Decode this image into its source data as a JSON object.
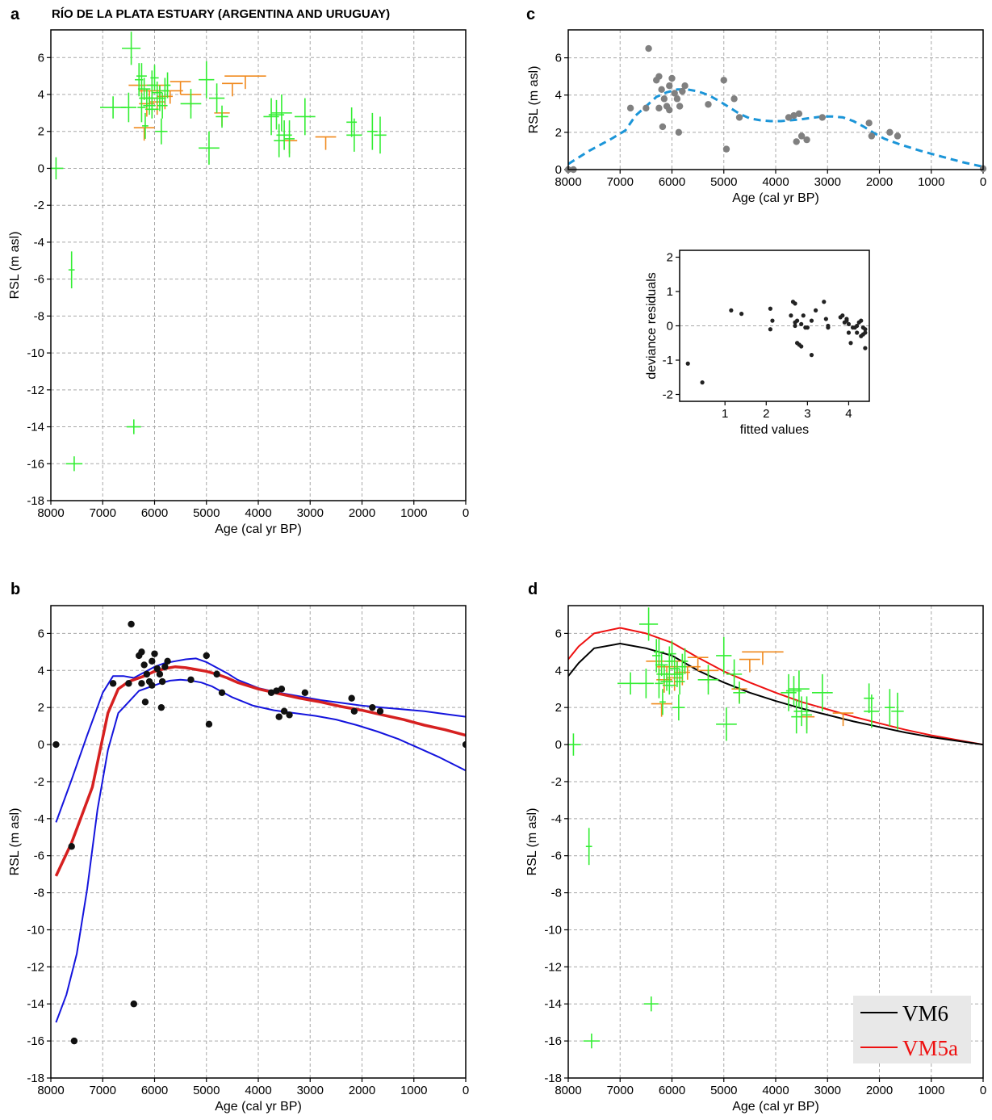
{
  "figure": {
    "title": "RÍO DE LA PLATA ESTUARY (ARGENTINA AND URUGUAY)",
    "panel_labels": [
      "a",
      "b",
      "c",
      "d"
    ]
  },
  "colors": {
    "green": "#33ee33",
    "orange": "#f08a1e",
    "red_fit": "#d62020",
    "blue_ci": "#1414dd",
    "dash_fit": "#1b95d8",
    "grey_point": "#808080",
    "black_point": "#111111",
    "vm6": "#000000",
    "vm5a": "#ee1111",
    "legend_bg": "#e8e8e8"
  },
  "chart_data": [
    {
      "id": "a",
      "type": "scatter",
      "title": "RÍO DE LA PLATA ESTUARY (ARGENTINA AND URUGUAY)",
      "xlabel": "Age (cal yr BP)",
      "ylabel": "RSL (m asl)",
      "xlim": [
        8000,
        0
      ],
      "ylim": [
        -18,
        7.5
      ],
      "xticks": [
        8000,
        7000,
        6000,
        5000,
        4000,
        3000,
        2000,
        1000,
        0
      ],
      "yticks": [
        -18,
        -16,
        -14,
        -12,
        -10,
        -8,
        -6,
        -4,
        -2,
        0,
        2,
        4,
        6
      ],
      "grid": true,
      "series": [
        {
          "kind": "sea-level index points (green crosses)",
          "points": "index_points"
        },
        {
          "kind": "marine limiting points (orange)",
          "points": "limiting_points"
        }
      ]
    },
    {
      "id": "b",
      "type": "scatter",
      "xlabel": "Age (cal yr BP)",
      "ylabel": "RSL (m asl)",
      "xlim": [
        8000,
        0
      ],
      "ylim": [
        -18,
        7.5
      ],
      "xticks": [
        8000,
        7000,
        6000,
        5000,
        4000,
        3000,
        2000,
        1000,
        0
      ],
      "yticks": [
        -18,
        -16,
        -14,
        -12,
        -10,
        -8,
        -6,
        -4,
        -2,
        0,
        2,
        4,
        6
      ],
      "grid": true,
      "series": [
        {
          "kind": "data points (black)",
          "points": "index_points"
        },
        {
          "kind": "fit (red)",
          "x": [
            7900,
            7600,
            7200,
            6900,
            6700,
            6500,
            6200,
            6000,
            5800,
            5600,
            5400,
            5200,
            5000,
            4800,
            4600,
            4400,
            4000,
            3600,
            3200,
            2800,
            2400,
            2000,
            1600,
            1200,
            800,
            400,
            0
          ],
          "y": [
            -7.1,
            -5.3,
            -2.3,
            1.7,
            3.0,
            3.4,
            3.7,
            3.95,
            4.1,
            4.2,
            4.15,
            4.05,
            3.95,
            3.8,
            3.6,
            3.35,
            3.0,
            2.75,
            2.5,
            2.3,
            2.05,
            1.85,
            1.6,
            1.35,
            1.05,
            0.8,
            0.5
          ]
        },
        {
          "kind": "upper confidence (blue)",
          "x": [
            7900,
            7600,
            7300,
            7000,
            6800,
            6600,
            6400,
            6200,
            6000,
            5800,
            5600,
            5400,
            5200,
            5000,
            4800,
            4600,
            4400,
            4000,
            3600,
            3200,
            2800,
            2400,
            2000,
            1600,
            1200,
            800,
            400,
            0
          ],
          "y": [
            -4.2,
            -1.9,
            0.5,
            2.8,
            3.7,
            3.7,
            3.6,
            3.9,
            4.2,
            4.4,
            4.5,
            4.6,
            4.65,
            4.45,
            4.15,
            3.85,
            3.5,
            3.05,
            2.8,
            2.6,
            2.4,
            2.25,
            2.1,
            2.0,
            1.9,
            1.8,
            1.65,
            1.5
          ]
        },
        {
          "kind": "lower confidence (blue)",
          "x": [
            7900,
            7700,
            7500,
            7300,
            7100,
            6900,
            6700,
            6500,
            6300,
            6100,
            5900,
            5700,
            5500,
            5300,
            5100,
            4900,
            4700,
            4500,
            4100,
            3700,
            3300,
            2900,
            2500,
            2100,
            1700,
            1300,
            900,
            500,
            0
          ],
          "y": [
            -15,
            -13.5,
            -11.3,
            -7.8,
            -3.5,
            -0.3,
            1.7,
            2.3,
            2.9,
            3.1,
            3.3,
            3.45,
            3.5,
            3.45,
            3.35,
            3.15,
            2.85,
            2.55,
            2.1,
            1.85,
            1.7,
            1.55,
            1.35,
            1.05,
            0.7,
            0.3,
            -0.2,
            -0.7,
            -1.4
          ]
        }
      ]
    },
    {
      "id": "c",
      "type": "scatter",
      "xlabel": "Age (cal yr BP)",
      "ylabel": "RSL (m asl)",
      "xlim": [
        8000,
        0
      ],
      "ylim": [
        0,
        7.5
      ],
      "xticks": [
        8000,
        7000,
        6000,
        5000,
        4000,
        3000,
        2000,
        1000,
        0
      ],
      "yticks": [
        0,
        2,
        4,
        6
      ],
      "grid": true,
      "series": [
        {
          "kind": "data points (grey)",
          "points": "index_points_positive"
        },
        {
          "kind": "fit (dashed blue)",
          "x": [
            8000,
            7600,
            7200,
            6900,
            6700,
            6500,
            6300,
            6100,
            5900,
            5700,
            5500,
            5300,
            5100,
            4900,
            4700,
            4500,
            4300,
            4100,
            3900,
            3700,
            3500,
            3300,
            3100,
            2900,
            2700,
            2500,
            2300,
            2100,
            1900,
            1600,
            1200,
            800,
            400,
            0
          ],
          "y": [
            0.3,
            1.0,
            1.6,
            2.1,
            2.9,
            3.4,
            3.9,
            4.15,
            4.3,
            4.3,
            4.2,
            4.0,
            3.7,
            3.35,
            3.0,
            2.75,
            2.65,
            2.6,
            2.6,
            2.65,
            2.7,
            2.78,
            2.85,
            2.85,
            2.8,
            2.6,
            2.3,
            1.95,
            1.65,
            1.35,
            1.0,
            0.7,
            0.4,
            0.15
          ]
        }
      ]
    },
    {
      "id": "c-inset",
      "type": "scatter",
      "xlabel": "fitted values",
      "ylabel": "deviance residuals",
      "xlim": [
        -0.1,
        4.5
      ],
      "ylim": [
        -2.2,
        2.2
      ],
      "xticks": [
        1,
        2,
        3,
        4
      ],
      "yticks": [
        -2,
        -1,
        0,
        1,
        2
      ],
      "zero_line": true,
      "points": [
        [
          0.1,
          -1.1
        ],
        [
          0.45,
          -1.65
        ],
        [
          1.15,
          0.45
        ],
        [
          1.4,
          0.35
        ],
        [
          2.1,
          0.5
        ],
        [
          2.1,
          -0.1
        ],
        [
          2.15,
          0.15
        ],
        [
          2.6,
          0.3
        ],
        [
          2.65,
          0.7
        ],
        [
          2.7,
          0.65
        ],
        [
          2.7,
          0.0
        ],
        [
          2.7,
          0.1
        ],
        [
          2.75,
          0.15
        ],
        [
          2.75,
          -0.5
        ],
        [
          2.8,
          -0.55
        ],
        [
          2.85,
          0.05
        ],
        [
          2.85,
          -0.6
        ],
        [
          2.9,
          0.3
        ],
        [
          2.95,
          -0.05
        ],
        [
          3.0,
          -0.05
        ],
        [
          3.1,
          0.15
        ],
        [
          3.1,
          -0.85
        ],
        [
          3.2,
          0.45
        ],
        [
          3.4,
          0.7
        ],
        [
          3.45,
          0.2
        ],
        [
          3.5,
          -0.05
        ],
        [
          3.5,
          0.0
        ],
        [
          3.8,
          0.25
        ],
        [
          3.85,
          0.3
        ],
        [
          3.9,
          0.1
        ],
        [
          3.95,
          0.15
        ],
        [
          3.95,
          0.2
        ],
        [
          4.0,
          0.05
        ],
        [
          4.0,
          -0.2
        ],
        [
          4.05,
          -0.5
        ],
        [
          4.1,
          -0.05
        ],
        [
          4.15,
          -0.05
        ],
        [
          4.2,
          0.0
        ],
        [
          4.2,
          -0.2
        ],
        [
          4.25,
          0.1
        ],
        [
          4.3,
          0.15
        ],
        [
          4.3,
          -0.3
        ],
        [
          4.35,
          -0.05
        ],
        [
          4.35,
          -0.25
        ],
        [
          4.4,
          -0.1
        ],
        [
          4.4,
          -0.2
        ],
        [
          4.4,
          -0.65
        ]
      ]
    },
    {
      "id": "d",
      "type": "scatter",
      "xlabel": "Age (cal yr BP)",
      "ylabel": "RSL (m asl)",
      "xlim": [
        8000,
        0
      ],
      "ylim": [
        -18,
        7.5
      ],
      "xticks": [
        8000,
        7000,
        6000,
        5000,
        4000,
        3000,
        2000,
        1000,
        0
      ],
      "yticks": [
        -18,
        -16,
        -14,
        -12,
        -10,
        -8,
        -6,
        -4,
        -2,
        0,
        2,
        4,
        6
      ],
      "grid": true,
      "legend": {
        "position": "bottom-right",
        "entries": [
          "VM6",
          "VM5a"
        ]
      },
      "series": [
        {
          "kind": "sea-level index points (green crosses)",
          "points": "index_points"
        },
        {
          "kind": "marine limiting points (orange)",
          "points": "limiting_points"
        },
        {
          "name": "VM6",
          "x": [
            8000,
            7800,
            7500,
            7000,
            6500,
            6000,
            5500,
            5000,
            4500,
            4000,
            3500,
            3000,
            2500,
            2000,
            1500,
            1000,
            500,
            0
          ],
          "y": [
            3.7,
            4.4,
            5.2,
            5.45,
            5.2,
            4.8,
            4.0,
            3.35,
            2.8,
            2.35,
            1.95,
            1.6,
            1.25,
            0.95,
            0.65,
            0.4,
            0.2,
            0.0
          ]
        },
        {
          "name": "VM5a",
          "x": [
            8000,
            7800,
            7500,
            7000,
            6500,
            6000,
            5500,
            5000,
            4500,
            4000,
            3500,
            3000,
            2500,
            2000,
            1500,
            1000,
            500,
            0
          ],
          "y": [
            4.6,
            5.3,
            6.0,
            6.3,
            6.0,
            5.5,
            4.7,
            3.95,
            3.35,
            2.8,
            2.3,
            1.9,
            1.5,
            1.15,
            0.8,
            0.5,
            0.25,
            0.0
          ]
        }
      ]
    }
  ],
  "index_points": [
    [
      7900,
      0.0,
      140,
      0.6
    ],
    [
      7600,
      -5.5,
      60,
      1.0
    ],
    [
      7550,
      -16.0,
      160,
      0.4
    ],
    [
      6400,
      -14.0,
      140,
      0.4
    ],
    [
      6450,
      6.5,
      180,
      0.9
    ],
    [
      6800,
      3.3,
      250,
      0.6
    ],
    [
      6500,
      3.3,
      150,
      0.8
    ],
    [
      6300,
      4.8,
      80,
      0.9
    ],
    [
      6250,
      5.0,
      100,
      0.7
    ],
    [
      6200,
      4.3,
      120,
      0.6
    ],
    [
      6250,
      3.3,
      80,
      0.8
    ],
    [
      6180,
      2.3,
      60,
      0.7
    ],
    [
      6150,
      3.8,
      150,
      0.5
    ],
    [
      6100,
      3.4,
      120,
      0.5
    ],
    [
      6050,
      4.5,
      100,
      0.8
    ],
    [
      6000,
      4.9,
      80,
      0.7
    ],
    [
      6050,
      3.2,
      130,
      0.5
    ],
    [
      5950,
      4.1,
      100,
      0.6
    ],
    [
      5900,
      3.8,
      120,
      0.7
    ],
    [
      5870,
      2.0,
      120,
      0.7
    ],
    [
      5850,
      3.4,
      100,
      0.7
    ],
    [
      5800,
      4.2,
      80,
      0.7
    ],
    [
      5750,
      4.5,
      60,
      0.7
    ],
    [
      5300,
      3.5,
      200,
      0.8
    ],
    [
      5000,
      4.8,
      150,
      1.0
    ],
    [
      4950,
      1.1,
      200,
      0.9
    ],
    [
      4800,
      3.8,
      150,
      0.8
    ],
    [
      4700,
      2.8,
      120,
      0.6
    ],
    [
      3750,
      2.8,
      150,
      1.0
    ],
    [
      3650,
      2.9,
      150,
      0.8
    ],
    [
      3600,
      1.5,
      100,
      0.9
    ],
    [
      3550,
      3.0,
      200,
      1.0
    ],
    [
      3500,
      1.8,
      150,
      0.8
    ],
    [
      3400,
      1.6,
      100,
      1.0
    ],
    [
      3100,
      2.8,
      200,
      1.0
    ],
    [
      2200,
      2.5,
      100,
      0.8
    ],
    [
      2150,
      1.8,
      150,
      0.9
    ],
    [
      1800,
      2.0,
      100,
      1.0
    ],
    [
      1650,
      1.8,
      120,
      1.0
    ]
  ],
  "limiting_points": [
    [
      6250,
      4.5,
      250
    ],
    [
      6050,
      3.8,
      200
    ],
    [
      5900,
      4.5,
      200
    ],
    [
      5700,
      4.2,
      250
    ],
    [
      5500,
      4.7,
      200
    ],
    [
      5300,
      4.0,
      200
    ],
    [
      6200,
      2.2,
      200
    ],
    [
      6150,
      3.5,
      150
    ],
    [
      5950,
      3.6,
      150
    ],
    [
      4700,
      3.0,
      150
    ],
    [
      4250,
      5.0,
      400
    ],
    [
      4500,
      4.6,
      200
    ],
    [
      3400,
      1.5,
      150
    ],
    [
      2700,
      1.7,
      200
    ],
    [
      6100,
      4.2,
      200
    ],
    [
      5800,
      3.9,
      150
    ]
  ]
}
